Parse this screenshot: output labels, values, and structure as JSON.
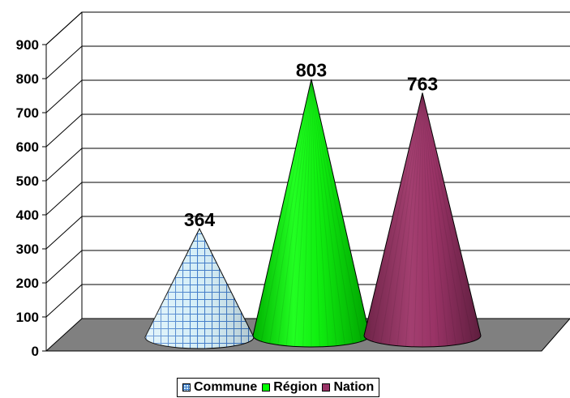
{
  "chart_data": {
    "type": "bar",
    "subtype": "3d-cone",
    "categories": [
      ""
    ],
    "series": [
      {
        "name": "Commune",
        "values": [
          364
        ],
        "color": "#bfe6f2",
        "pattern": "grid"
      },
      {
        "name": "Région",
        "values": [
          803
        ],
        "color": "#00ff00"
      },
      {
        "name": "Nation",
        "values": [
          763
        ],
        "color": "#993366"
      }
    ],
    "ylim": [
      0,
      900
    ],
    "yticks": [
      0,
      100,
      200,
      300,
      400,
      500,
      600,
      700,
      800,
      900
    ],
    "grid": true,
    "legend_position": "bottom",
    "floor_color": "#808080"
  }
}
